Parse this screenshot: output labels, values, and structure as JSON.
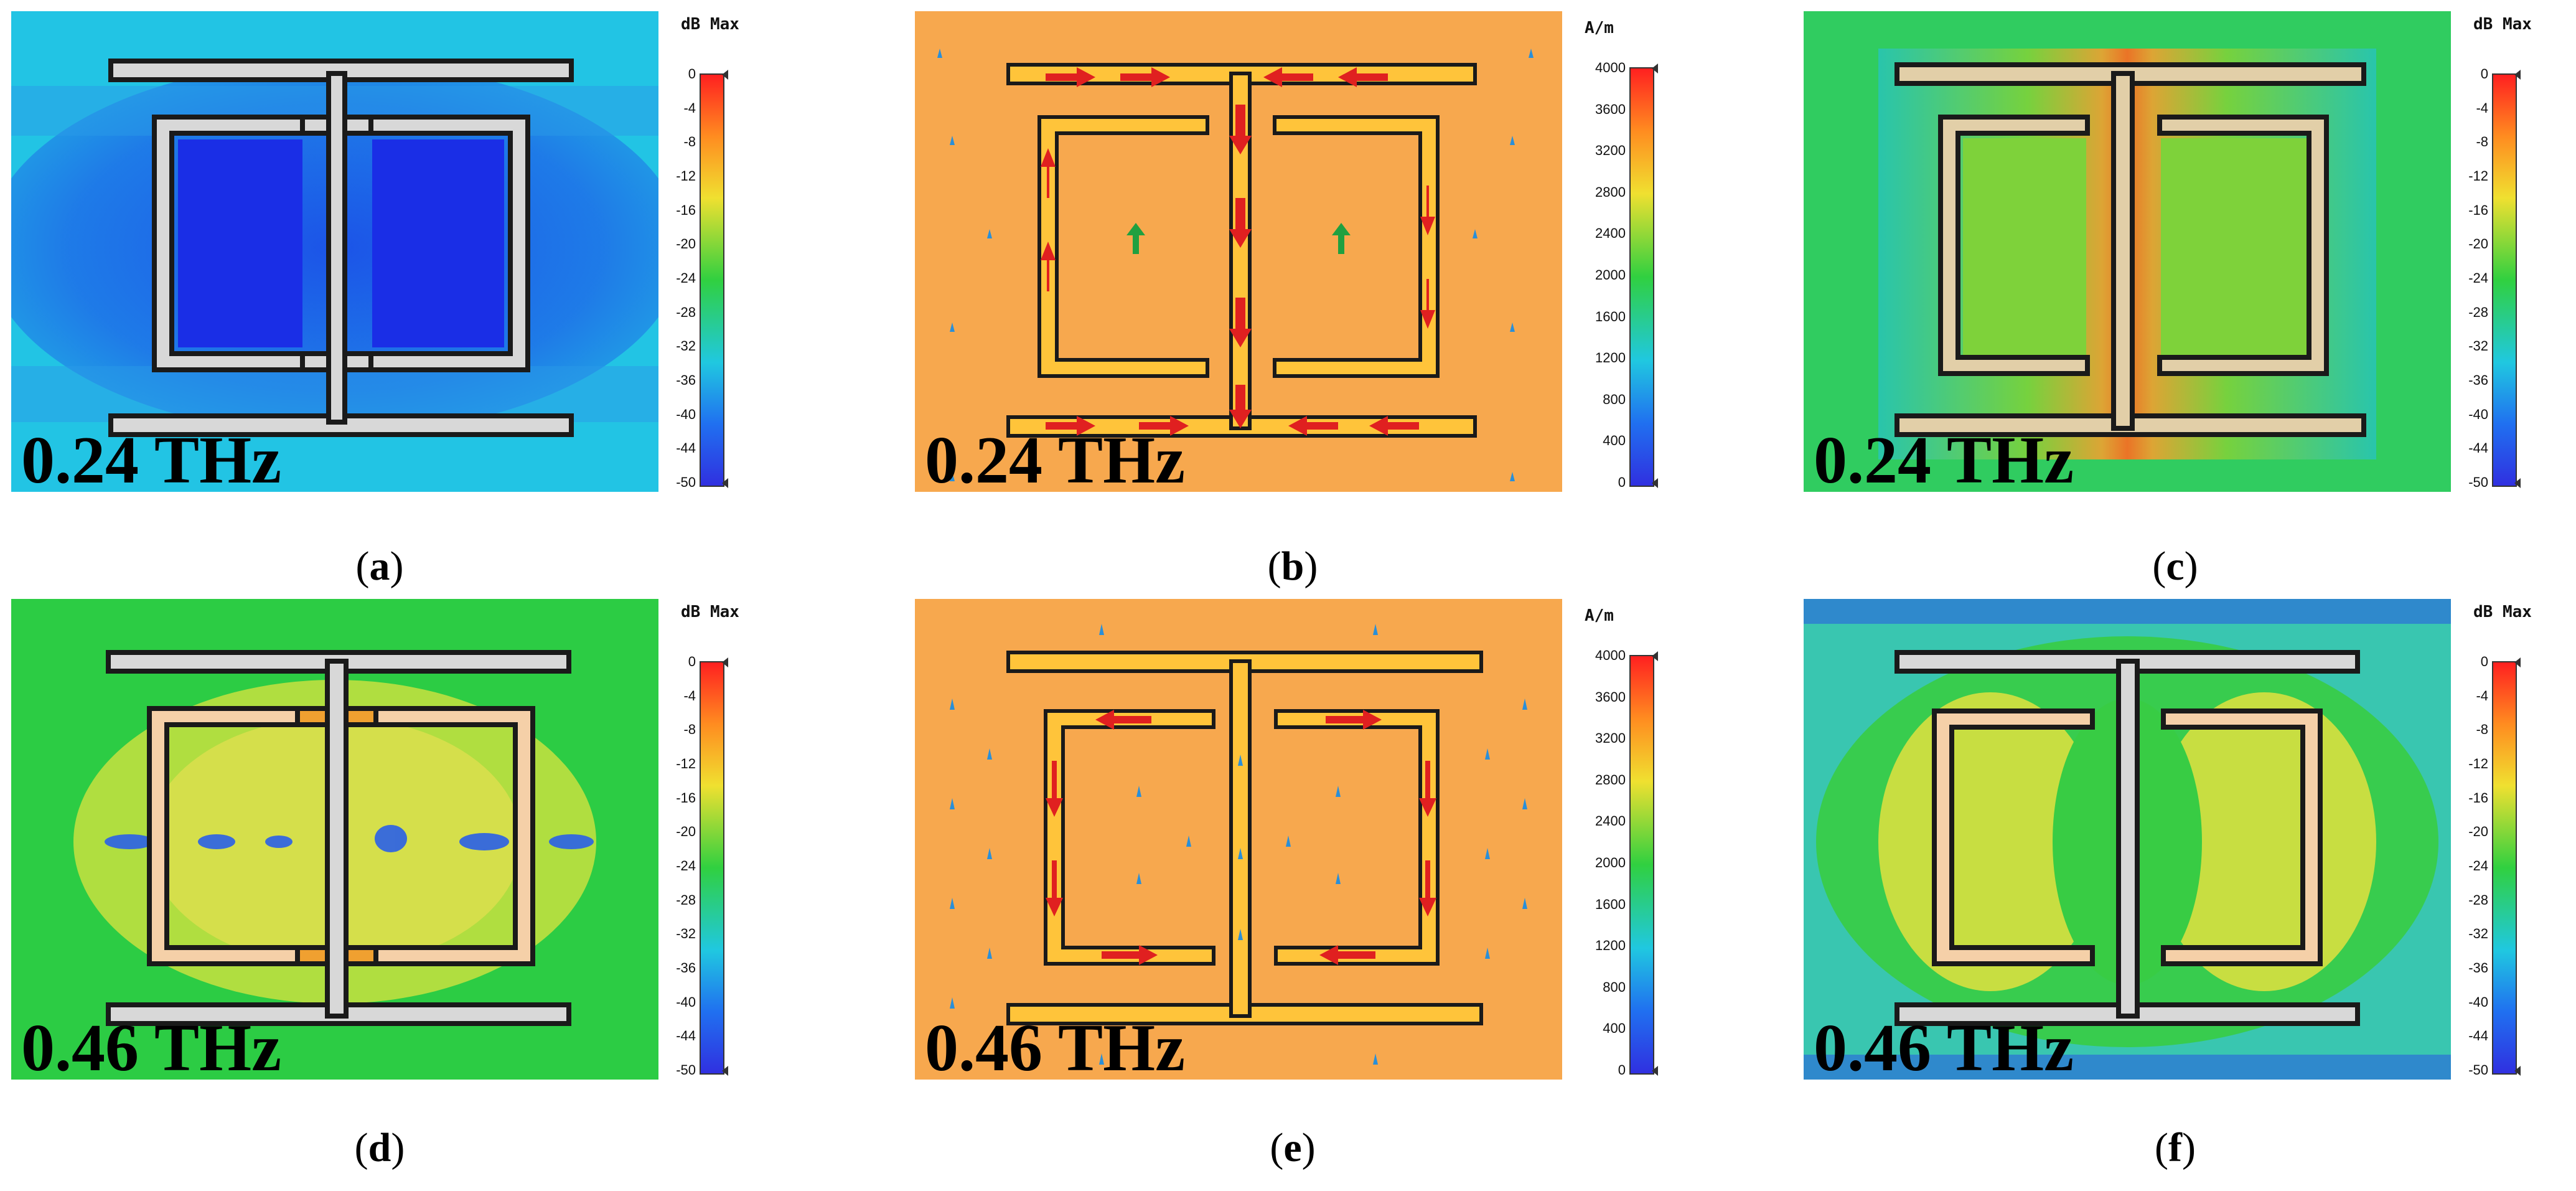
{
  "panels": [
    {
      "id": "a",
      "letter": "a",
      "freq": "0.24 THz",
      "kind": "efield",
      "unit": "dB  Max",
      "bg": "#20c6e4"
    },
    {
      "id": "b",
      "letter": "b",
      "freq": "0.24 THz",
      "kind": "current",
      "unit": "A/m",
      "bg": "#f7a84e"
    },
    {
      "id": "c",
      "letter": "c",
      "freq": "0.24 THz",
      "kind": "hfield",
      "unit": "dB  Max",
      "bg": "#33cc66"
    },
    {
      "id": "d",
      "letter": "d",
      "freq": "0.46 THz",
      "kind": "efield2",
      "unit": "dB  Max",
      "bg": "#2ccc44"
    },
    {
      "id": "e",
      "letter": "e",
      "freq": "0.46 THz",
      "kind": "current2",
      "unit": "A/m",
      "bg": "#f7a84e"
    },
    {
      "id": "f",
      "letter": "f",
      "freq": "0.46 THz",
      "kind": "hfield2",
      "unit": "dB  Max",
      "bg": "#39c6b0"
    }
  ],
  "db_scale": {
    "ticks": [
      "0",
      "-4",
      "-8",
      "-12",
      "-16",
      "-20",
      "-24",
      "-28",
      "-32",
      "-36",
      "-40",
      "-44",
      "-50"
    ],
    "range": [
      -50,
      0
    ]
  },
  "current_scale": {
    "ticks": [
      "4000",
      "3600",
      "3200",
      "2800",
      "2400",
      "2000",
      "1600",
      "1200",
      "800",
      "400",
      "0"
    ],
    "range": [
      0,
      4000
    ]
  },
  "colors": {
    "scale_top": "#ff2020",
    "scale_mid": "#30d040",
    "scale_bottom": "#3030e0",
    "metal": "#d9d9d9",
    "metal_hot": "#ffc240",
    "outline": "#1a1a1a"
  }
}
